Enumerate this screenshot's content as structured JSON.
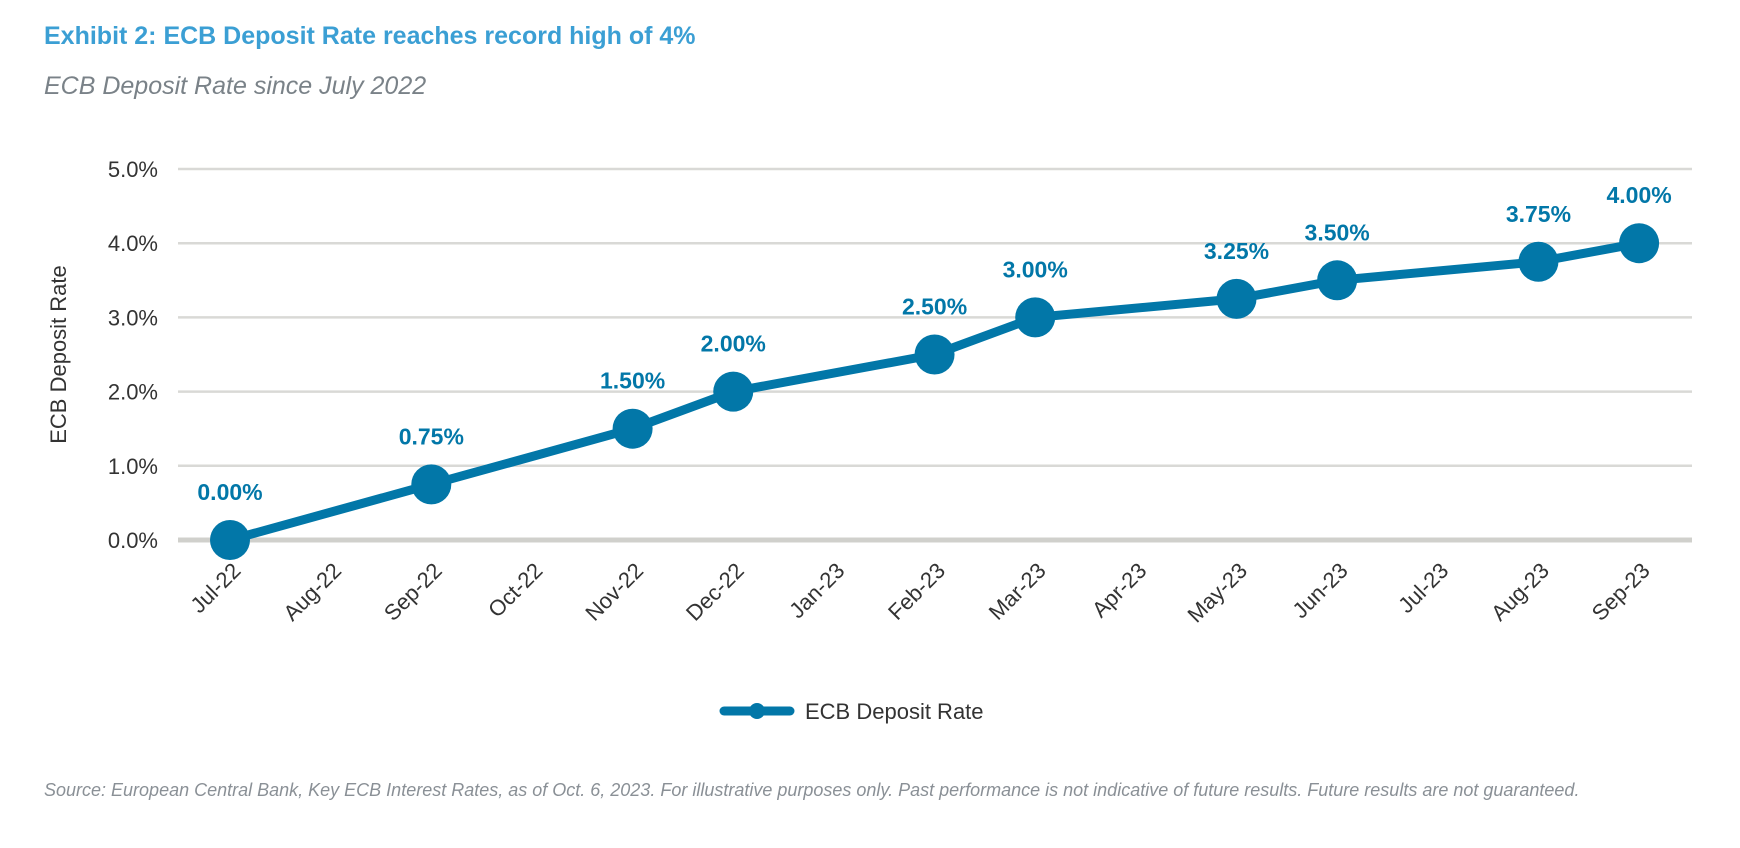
{
  "title": "Exhibit 2: ECB Deposit Rate reaches record high of 4%",
  "subtitle": "ECB Deposit Rate since July 2022",
  "source": "Source: European Central Bank, Key ECB Interest Rates, as of Oct. 6, 2023. For illustrative purposes only. Past performance is not indicative of future results. Future results are not guaranteed.",
  "chart_data": {
    "type": "line",
    "title": "Exhibit 2: ECB Deposit Rate reaches record high of 4%",
    "subtitle": "ECB Deposit Rate since July 2022",
    "xlabel": "",
    "ylabel": "ECB Deposit Rate",
    "categories": [
      "Jul-22",
      "Aug-22",
      "Sep-22",
      "Oct-22",
      "Nov-22",
      "Dec-22",
      "Jan-23",
      "Feb-23",
      "Mar-23",
      "Apr-23",
      "May-23",
      "Jun-23",
      "Jul-23",
      "Aug-23",
      "Sep-23"
    ],
    "ylim": [
      0,
      5
    ],
    "yticks": [
      "0.0%",
      "1.0%",
      "2.0%",
      "3.0%",
      "4.0%",
      "5.0%"
    ],
    "grid": true,
    "legend": "bottom-center",
    "color": "#0277a8",
    "series": [
      {
        "name": "ECB Deposit Rate",
        "points": [
          {
            "x": "Jul-22",
            "y": 0.0,
            "label": "0.00%"
          },
          {
            "x": "Sep-22",
            "y": 0.75,
            "label": "0.75%"
          },
          {
            "x": "Nov-22",
            "y": 1.5,
            "label": "1.50%"
          },
          {
            "x": "Dec-22",
            "y": 2.0,
            "label": "2.00%"
          },
          {
            "x": "Feb-23",
            "y": 2.5,
            "label": "2.50%"
          },
          {
            "x": "Mar-23",
            "y": 3.0,
            "label": "3.00%"
          },
          {
            "x": "May-23",
            "y": 3.25,
            "label": "3.25%"
          },
          {
            "x": "Jun-23",
            "y": 3.5,
            "label": "3.50%"
          },
          {
            "x": "Aug-23",
            "y": 3.75,
            "label": "3.75%"
          },
          {
            "x": "Sep-23",
            "y": 4.0,
            "label": "4.00%"
          }
        ]
      }
    ]
  }
}
